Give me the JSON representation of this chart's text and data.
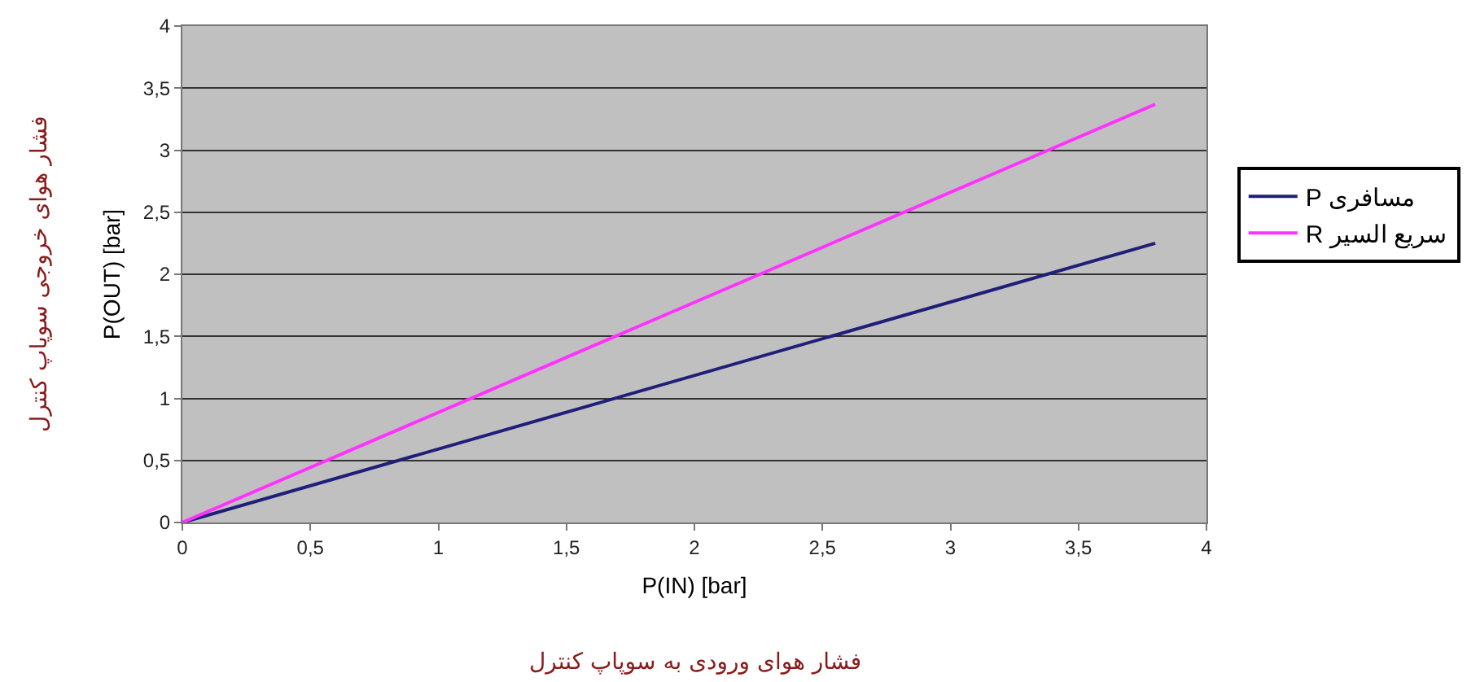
{
  "chart_data": {
    "type": "line",
    "xlabel": "P(IN) [bar]",
    "ylabel": "P(OUT) [bar]",
    "annotations": [
      "فشار هوای ورودی به سوپاپ کنترل",
      "فشار هوای خروجی سوپاپ کنترل"
    ],
    "x": [
      0,
      3.8
    ],
    "series": [
      {
        "name": "P مسافری",
        "color": "#1f1f7a",
        "values": [
          0,
          2.25
        ]
      },
      {
        "name": "R سریع السیر",
        "color": "#ff33ff",
        "values": [
          0,
          3.37
        ]
      }
    ],
    "xlim": [
      0,
      4
    ],
    "xticks": [
      0,
      {
        "value": 0.5,
        "label": "0,5"
      },
      1,
      {
        "value": 1.5,
        "label": "1,5"
      },
      2,
      {
        "value": 2.5,
        "label": "2,5"
      },
      3,
      {
        "value": 3.5,
        "label": "3,5"
      },
      4
    ],
    "ylim": [
      0,
      4
    ],
    "yticks": [
      0,
      {
        "value": 0.5,
        "label": "0,5"
      },
      1,
      {
        "value": 1.5,
        "label": "1,5"
      },
      2,
      {
        "value": 2.5,
        "label": "2,5"
      },
      3,
      {
        "value": 3.5,
        "label": "3,5"
      },
      4
    ],
    "grid": "y",
    "legend": "right",
    "marker": "none",
    "line_style": "solid"
  }
}
